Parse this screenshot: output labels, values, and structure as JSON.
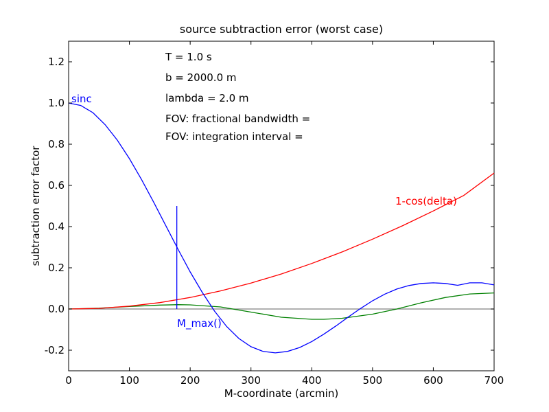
{
  "chart_data": {
    "type": "line",
    "title": "source subtraction error (worst case)",
    "xlabel": "M-coordinate (arcmin)",
    "ylabel": "subtraction error factor",
    "xlim": [
      0,
      700
    ],
    "ylim": [
      -0.3,
      1.3
    ],
    "grid": false,
    "xticks": [
      0,
      100,
      200,
      300,
      400,
      500,
      600,
      700
    ],
    "xtick_labels": [
      "0",
      "100",
      "200",
      "300",
      "400",
      "500",
      "600",
      "700"
    ],
    "yticks": [
      -0.2,
      0.0,
      0.2,
      0.4,
      0.6,
      0.8,
      1.0,
      1.2
    ],
    "ytick_labels": [
      "-0.2",
      "0.0",
      "0.2",
      "0.4",
      "0.6",
      "0.8",
      "1.0",
      "1.2"
    ],
    "annotations": [
      "T = 1.0 s",
      "b = 2000.0 m",
      "lambda = 2.0 m",
      "FOV: fractional bandwidth =",
      "FOV: integration interval ="
    ],
    "series": [
      {
        "name": "sinc",
        "color": "#0000ff",
        "x": [
          0,
          20,
          40,
          60,
          80,
          100,
          120,
          140,
          160,
          180,
          200,
          220,
          240,
          260,
          280,
          300,
          320,
          340,
          360,
          380,
          400,
          420,
          440,
          460,
          480,
          500,
          520,
          540,
          560,
          580,
          600,
          620,
          640,
          660,
          680,
          700
        ],
        "y": [
          1.0,
          0.988,
          0.953,
          0.895,
          0.82,
          0.73,
          0.628,
          0.518,
          0.404,
          0.29,
          0.18,
          0.08,
          -0.01,
          -0.085,
          -0.143,
          -0.183,
          -0.206,
          -0.213,
          -0.206,
          -0.187,
          -0.158,
          -0.122,
          -0.082,
          -0.039,
          0.002,
          0.04,
          0.072,
          0.097,
          0.114,
          0.124,
          0.127,
          0.124,
          0.115,
          0.127,
          0.127,
          0.117
        ]
      },
      {
        "name": "1-cos(delta)",
        "color": "#ff0000",
        "x": [
          0,
          50,
          100,
          150,
          200,
          250,
          300,
          350,
          400,
          450,
          500,
          550,
          600,
          650,
          700
        ],
        "y": [
          0.0,
          0.003,
          0.014,
          0.031,
          0.056,
          0.088,
          0.126,
          0.17,
          0.221,
          0.277,
          0.339,
          0.405,
          0.476,
          0.551,
          0.66
        ]
      },
      {
        "name": "M_max()",
        "color": "#0000ff",
        "x": [
          178,
          178
        ],
        "y": [
          0.0,
          0.5
        ]
      },
      {
        "name": "",
        "color": "#008000",
        "x": [
          0,
          50,
          100,
          150,
          180,
          200,
          250,
          270,
          300,
          350,
          400,
          420,
          450,
          500,
          540,
          580,
          620,
          660,
          700
        ],
        "y": [
          0.0,
          0.004,
          0.012,
          0.019,
          0.021,
          0.02,
          0.01,
          0.0,
          -0.015,
          -0.04,
          -0.05,
          -0.05,
          -0.045,
          -0.025,
          0.0,
          0.03,
          0.056,
          0.073,
          0.078
        ]
      },
      {
        "name": "",
        "color": "#808080",
        "x": [
          0,
          700
        ],
        "y": [
          0.0,
          0.0
        ]
      }
    ],
    "series_labels": {
      "sinc": "sinc",
      "one_minus_cos": "1-cos(delta)",
      "m_max": "M_max()"
    }
  }
}
